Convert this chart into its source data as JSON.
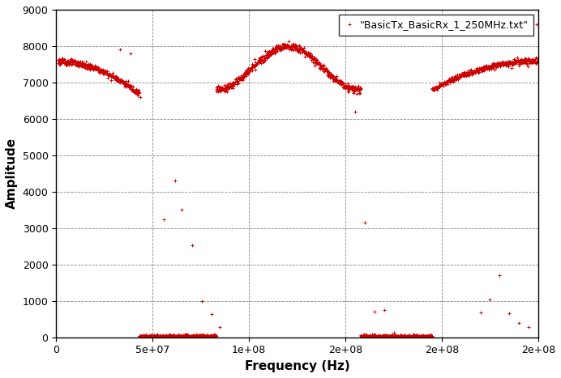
{
  "legend_label": "\"BasicTx_BasicRx_1_250MHz.txt\"",
  "xlabel": "Frequency (Hz)",
  "ylabel": "Amplitude",
  "xlim": [
    0,
    250000000.0
  ],
  "ylim": [
    0,
    9000
  ],
  "xticks": [
    0,
    50000000.0,
    100000000.0,
    150000000.0,
    200000000.0,
    250000000.0
  ],
  "yticks": [
    0,
    1000,
    2000,
    3000,
    4000,
    5000,
    6000,
    7000,
    8000,
    9000
  ],
  "marker_color": "#cc0000",
  "marker": "+",
  "marker_size": 3,
  "background_color": "#ffffff",
  "grid_color": "#888888",
  "grid_style": "--",
  "vline_positions": [
    50000000.0,
    100000000.0,
    150000000.0,
    200000000.0
  ],
  "sample_rate": 250000000.0
}
